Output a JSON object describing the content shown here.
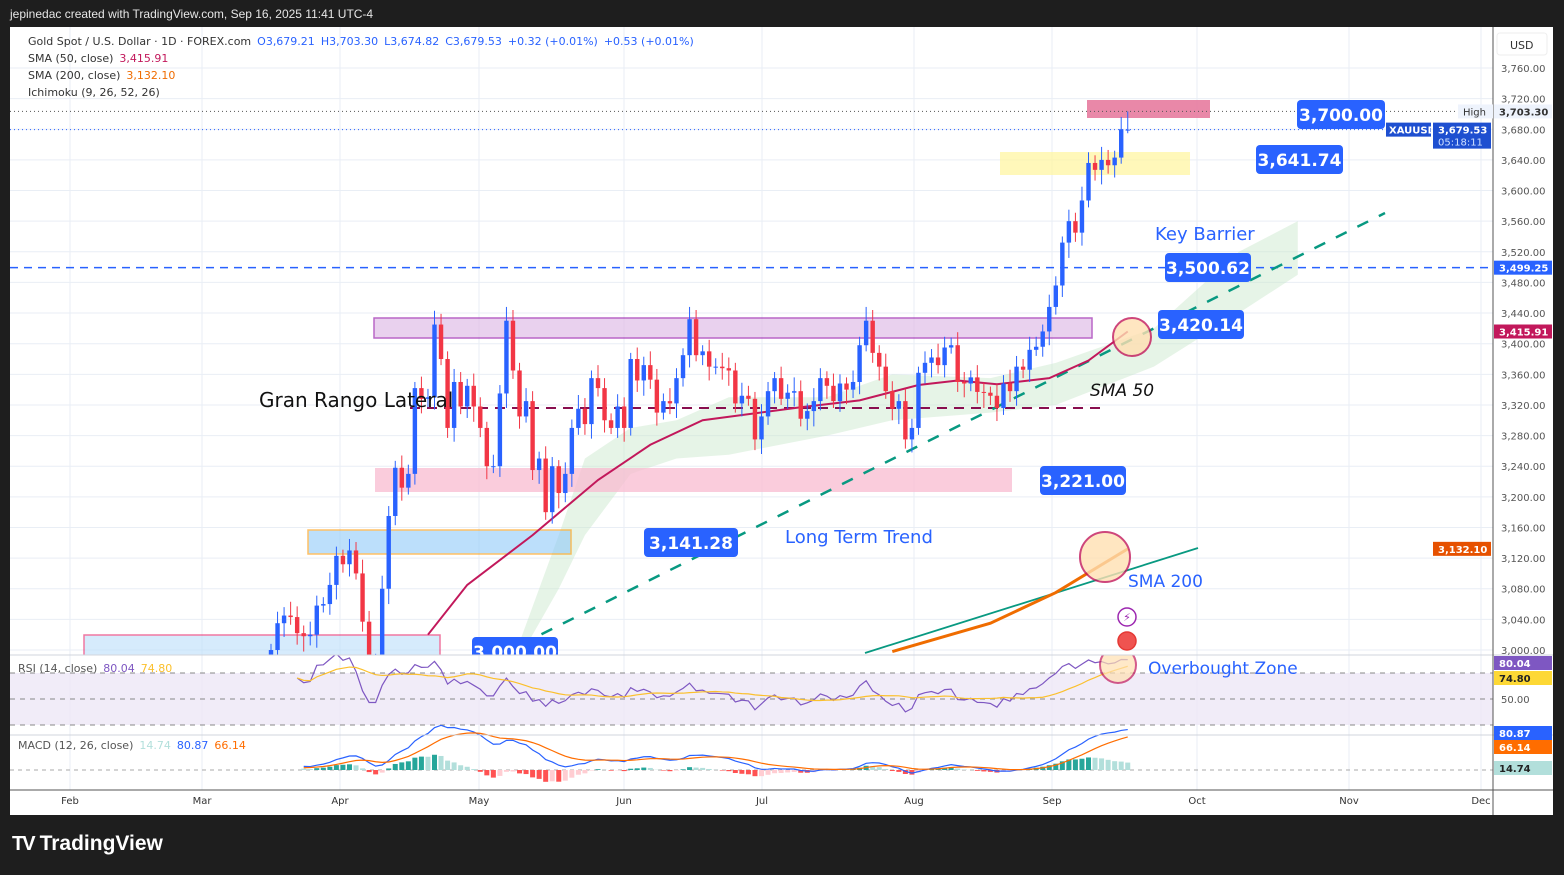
{
  "topbar": {
    "text": "jepinedac created with TradingView.com, Sep 16, 2025 11:41 UTC-4"
  },
  "legend": {
    "symbol": "Gold Spot / U.S. Dollar · 1D · FOREX.com",
    "open": "O3,679.21",
    "high": "H3,703.30",
    "low": "L3,674.82",
    "close": "C3,679.53",
    "change": "+0.32 (+0.01%)",
    "change2": "+0.53 (+0.01%)",
    "sma50_label": "SMA (50, close)",
    "sma50_value": "3,415.91",
    "sma200_label": "SMA (200, close)",
    "sma200_value": "3,132.10",
    "ichimoku_label": "Ichimoku (9, 26, 52, 26)",
    "rsi_label": "RSI (14, close)",
    "rsi_value": "80.04",
    "rsi_ma_value": "74.80",
    "macd_label": "MACD (12, 26, close)",
    "macd_hist": "14.74",
    "macd_value": "80.87",
    "macd_signal": "66.14"
  },
  "footer": {
    "brand": "TradingView",
    "logo": "TV"
  },
  "colors": {
    "up": "#2962ff",
    "down": "#f23645",
    "sma50": "#c2185b",
    "sma200": "#ef6c00",
    "accent": "#2962ff",
    "trend": "#089981"
  },
  "chart_data": {
    "type": "candlestick",
    "title": "Gold Spot / U.S. Dollar · 1D",
    "currency": "USD",
    "ylim": [
      3000,
      3760
    ],
    "y_ticks": [
      "3,760.00",
      "3,720.00",
      "3,680.00",
      "3,640.00",
      "3,600.00",
      "3,560.00",
      "3,520.00",
      "3,480.00",
      "3,440.00",
      "3,400.00",
      "3,360.00",
      "3,320.00",
      "3,280.00",
      "3,240.00",
      "3,200.00",
      "3,160.00",
      "3,120.00",
      "3,080.00",
      "3,040.00",
      "3,000.00"
    ],
    "x_ticks": [
      "Feb",
      "Mar",
      "Apr",
      "May",
      "Jun",
      "Jul",
      "Aug",
      "Sep",
      "Oct",
      "Nov",
      "Dec"
    ],
    "first_bar": "2025-03-17",
    "closes": [
      3000,
      3035,
      3045,
      3043,
      3022,
      3018,
      3020,
      3058,
      3060,
      3085,
      3123,
      3112,
      3130,
      3100,
      3037,
      2985,
      2985,
      3080,
      3175,
      3238,
      3212,
      3230,
      3342,
      3328,
      3330,
      3425,
      3380,
      3290,
      3350,
      3318,
      3345,
      3318,
      3290,
      3240,
      3240,
      3335,
      3430,
      3365,
      3305,
      3325,
      3235,
      3250,
      3180,
      3240,
      3205,
      3230,
      3290,
      3315,
      3295,
      3355,
      3342,
      3300,
      3290,
      3318,
      3290,
      3380,
      3352,
      3372,
      3353,
      3310,
      3325,
      3322,
      3355,
      3385,
      3432,
      3385,
      3390,
      3370,
      3370,
      3368,
      3365,
      3322,
      3332,
      3328,
      3275,
      3305,
      3338,
      3355,
      3328,
      3336,
      3338,
      3302,
      3312,
      3325,
      3355,
      3345,
      3325,
      3348,
      3340,
      3350,
      3398,
      3430,
      3388,
      3370,
      3338,
      3315,
      3325,
      3275,
      3290,
      3362,
      3375,
      3382,
      3372,
      3395,
      3398,
      3350,
      3348,
      3356,
      3337,
      3336,
      3332,
      3316,
      3348,
      3338,
      3370,
      3366,
      3392,
      3396,
      3416,
      3448,
      3476,
      3532,
      3560,
      3545,
      3587,
      3636,
      3627,
      3640,
      3633,
      3643,
      3680,
      3679.53
    ],
    "last_open": 3679.21,
    "last_high": 3703.3,
    "last_low": 3674.82,
    "sma50": [
      [
        24,
        3020
      ],
      [
        30,
        3085
      ],
      [
        40,
        3150
      ],
      [
        50,
        3222
      ],
      [
        58,
        3268
      ],
      [
        66,
        3300
      ],
      [
        81,
        3317
      ],
      [
        90,
        3326
      ],
      [
        99,
        3346
      ],
      [
        105,
        3352
      ],
      [
        111,
        3347
      ],
      [
        119,
        3355
      ],
      [
        125,
        3378
      ],
      [
        131,
        3415.91
      ]
    ],
    "sma200": [
      [
        95,
        2998
      ],
      [
        110,
        3035
      ],
      [
        120,
        3075
      ],
      [
        131,
        3132.1
      ]
    ],
    "ichimoku_cloud": [
      [
        38,
        2990,
        3010
      ],
      [
        44,
        3080,
        3150
      ],
      [
        48,
        3150,
        3250
      ],
      [
        55,
        3230,
        3290
      ],
      [
        62,
        3250,
        3300
      ],
      [
        70,
        3255,
        3330
      ],
      [
        85,
        3280,
        3330
      ],
      [
        95,
        3300,
        3360
      ],
      [
        110,
        3310,
        3355
      ],
      [
        120,
        3320,
        3375
      ],
      [
        135,
        3370,
        3420
      ],
      [
        148,
        3440,
        3520
      ],
      [
        157,
        3490,
        3560
      ]
    ],
    "price_tags": {
      "high_label": "High",
      "high": "3,703.30",
      "symbol": "XAUUSD",
      "last": "3,679.53",
      "countdown": "05:18:11",
      "line": "3,499.25",
      "sma50": "3,415.91",
      "sma200": "3,132.10"
    },
    "rsi_scale": "50.00",
    "rsi_tags": {
      "rsi": "80.04",
      "ma": "74.80"
    },
    "macd_tags": {
      "macd": "80.87",
      "signal": "66.14",
      "hist": "14.74"
    },
    "annotations": {
      "level_3700": "3,700.00",
      "level_3641": "3,641.74",
      "level_3500": "3,500.62",
      "level_3420": "3,420.14",
      "level_3221": "3,221.00",
      "level_3141": "3,141.28",
      "level_3000": "3,000.00",
      "key_barrier": "Key Barrier",
      "sma50_note": "SMA 50",
      "long_term_trend": "Long Term Trend",
      "sma200_note": "SMA 200",
      "overbought": "Overbought Zone",
      "range": "Gran Rango Lateral"
    }
  }
}
